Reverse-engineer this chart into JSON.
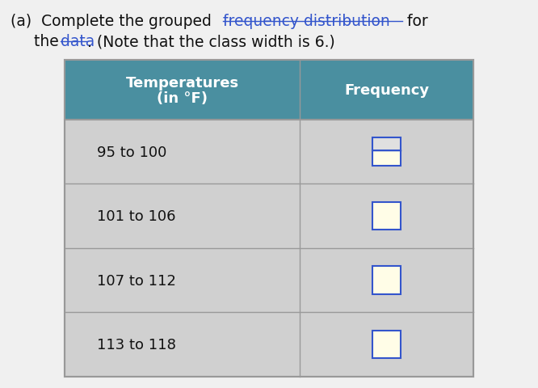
{
  "title_pre": "(a)  Complete the grouped ",
  "title_link1": "frequency distribution",
  "title_post": " for",
  "line2_pre": "the ",
  "line2_link": "data",
  "line2_post": ". (Note that the class width is 6.)",
  "col1_header_line1": "Temperatures",
  "col1_header_line2": "(in °F)",
  "col2_header": "Frequency",
  "rows": [
    "95 to 100",
    "101 to 106",
    "107 to 112",
    "113 to 118"
  ],
  "header_bg": "#4a8fa0",
  "header_text_color": "#ffffff",
  "table_bg": "#d0d0d0",
  "border_color": "#999999",
  "input_box_color": "#3355cc",
  "input_box_fill": "#fffde7",
  "input_box_fill_top": "#e0e0e0",
  "text_color": "#111111",
  "link_color": "#3355cc",
  "bg_color": "#f0f0f0"
}
